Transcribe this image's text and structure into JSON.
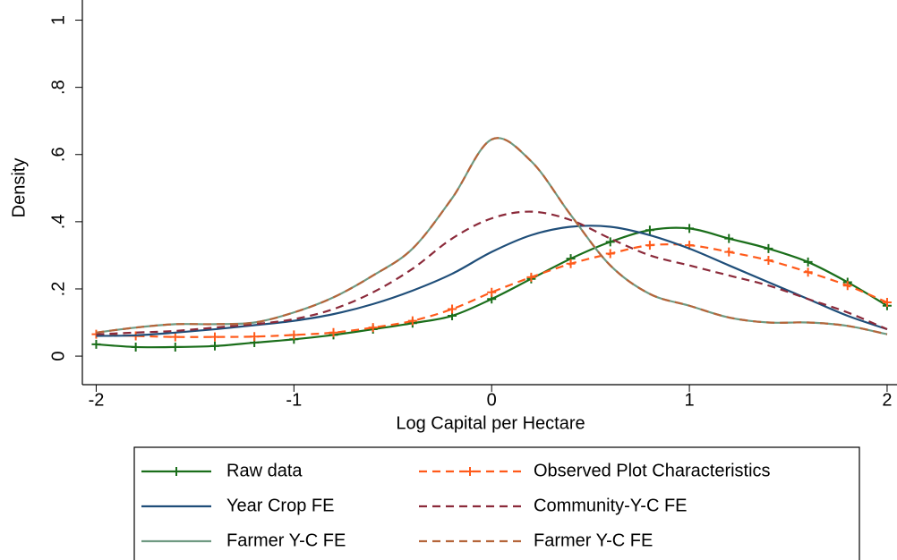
{
  "chart_data": {
    "type": "line",
    "xlabel": "Log Capital per Hectare",
    "ylabel": "Density",
    "x": [
      -2,
      -1.8,
      -1.6,
      -1.4,
      -1.2,
      -1,
      -0.8,
      -0.6,
      -0.4,
      -0.2,
      0,
      0.2,
      0.4,
      0.6,
      0.8,
      1,
      1.2,
      1.4,
      1.6,
      1.8,
      2
    ],
    "xlim": [
      -2.07,
      2.05
    ],
    "xticks": [
      -2,
      -1,
      0,
      1,
      2
    ],
    "ylim": [
      -0.085,
      1.06
    ],
    "yticks": [
      0,
      {
        "value": 0.2,
        "label": ".2"
      },
      {
        "value": 0.4,
        "label": ".4"
      },
      {
        "value": 0.6,
        "label": ".6"
      },
      {
        "value": 0.8,
        "label": ".8"
      },
      1
    ],
    "legend_position": "bottom",
    "series": [
      {
        "name": "Raw data",
        "color": "#1a6e1a",
        "dash": false,
        "marker": "plus",
        "values": [
          0.035,
          0.027,
          0.027,
          0.03,
          0.04,
          0.05,
          0.063,
          0.08,
          0.098,
          0.12,
          0.17,
          0.23,
          0.29,
          0.34,
          0.375,
          0.38,
          0.35,
          0.32,
          0.28,
          0.22,
          0.15
        ]
      },
      {
        "name": "Observed Plot Characteristics",
        "color": "#ff5a1a",
        "dash": true,
        "marker": "plus",
        "values": [
          0.065,
          0.06,
          0.057,
          0.057,
          0.058,
          0.063,
          0.07,
          0.085,
          0.105,
          0.14,
          0.19,
          0.235,
          0.275,
          0.305,
          0.33,
          0.33,
          0.31,
          0.285,
          0.25,
          0.21,
          0.16
        ]
      },
      {
        "name": "Year Crop FE",
        "color": "#1f4e79",
        "dash": false,
        "marker": "none",
        "values": [
          0.06,
          0.062,
          0.07,
          0.08,
          0.092,
          0.105,
          0.125,
          0.155,
          0.195,
          0.245,
          0.31,
          0.36,
          0.385,
          0.385,
          0.36,
          0.32,
          0.27,
          0.22,
          0.17,
          0.12,
          0.08
        ]
      },
      {
        "name": "Community-Y-C FE",
        "color": "#8b2a3a",
        "dash": true,
        "marker": "none",
        "values": [
          0.065,
          0.07,
          0.075,
          0.085,
          0.095,
          0.11,
          0.14,
          0.19,
          0.26,
          0.35,
          0.41,
          0.43,
          0.405,
          0.35,
          0.3,
          0.27,
          0.24,
          0.21,
          0.17,
          0.13,
          0.08
        ]
      },
      {
        "name": "Farmer Y-C FE",
        "color": "#6f9a82",
        "dash": false,
        "marker": "none",
        "values": [
          0.07,
          0.085,
          0.095,
          0.095,
          0.1,
          0.13,
          0.175,
          0.24,
          0.32,
          0.47,
          0.645,
          0.58,
          0.42,
          0.27,
          0.185,
          0.15,
          0.115,
          0.1,
          0.1,
          0.09,
          0.065
        ]
      },
      {
        "name": "Farmer Y-C FE",
        "color": "#b5653a",
        "dash": true,
        "marker": "none",
        "values": [
          0.07,
          0.085,
          0.095,
          0.095,
          0.1,
          0.13,
          0.175,
          0.24,
          0.32,
          0.47,
          0.645,
          0.58,
          0.42,
          0.27,
          0.185,
          0.15,
          0.115,
          0.1,
          0.1,
          0.09,
          0.065
        ]
      }
    ]
  }
}
